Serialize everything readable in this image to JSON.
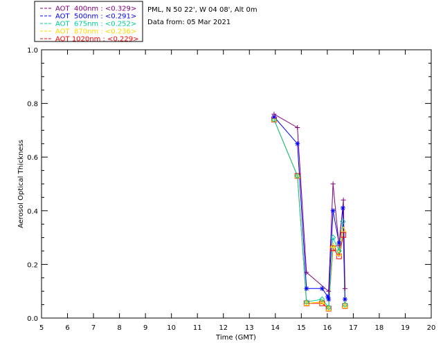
{
  "chart_data": {
    "type": "line",
    "title": "",
    "info_lines": [
      "PML, N 50 22', W 04 08', Alt 0m",
      "Data from: 05 Mar 2021"
    ],
    "xlabel": "Time (GMT)",
    "ylabel": "Aerosol Optical Thickness",
    "xlim": [
      5,
      20
    ],
    "ylim": [
      0,
      1
    ],
    "x_ticks": [
      "5",
      "6",
      "7",
      "8",
      "9",
      "10",
      "11",
      "12",
      "13",
      "14",
      "15",
      "16",
      "17",
      "18",
      "19",
      "20"
    ],
    "y_ticks": [
      "0.0",
      "0.2",
      "0.4",
      "0.6",
      "0.8",
      "1.0"
    ],
    "grid": false,
    "legend_position": "top-left",
    "series": [
      {
        "name": "AOT  400nm : <0.329>",
        "color": "#800080",
        "marker": "plus",
        "x": [
          13.95,
          14.85,
          15.2,
          16.05,
          16.22,
          16.45,
          16.62,
          16.68
        ],
        "y": [
          0.76,
          0.71,
          0.17,
          0.1,
          0.5,
          0.27,
          0.44,
          0.11
        ]
      },
      {
        "name": "AOT  500nm : <0.291>",
        "color": "#0000ff",
        "marker": "asterisk",
        "x": [
          13.95,
          14.85,
          15.2,
          15.8,
          16.02,
          16.05,
          16.22,
          16.45,
          16.6,
          16.68
        ],
        "y": [
          0.75,
          0.65,
          0.11,
          0.11,
          0.08,
          0.07,
          0.4,
          0.28,
          0.41,
          0.07
        ]
      },
      {
        "name": "AOT  675nm : <0.252>",
        "color": "#00cc99",
        "marker": "diamond",
        "x": [
          13.95,
          14.85,
          15.2,
          15.8,
          16.05,
          16.22,
          16.45,
          16.6,
          16.68
        ],
        "y": [
          0.74,
          0.53,
          0.06,
          0.07,
          0.04,
          0.3,
          0.25,
          0.36,
          0.05
        ]
      },
      {
        "name": "AOT  870nm : <0.236>",
        "color": "#ffd700",
        "marker": "triangle",
        "x": [
          13.95,
          14.85,
          15.2,
          15.8,
          16.05,
          16.22,
          16.45,
          16.62,
          16.68
        ],
        "y": [
          0.74,
          0.53,
          0.055,
          0.06,
          0.035,
          0.27,
          0.24,
          0.33,
          0.045
        ]
      },
      {
        "name": "AOT 1020nm : <0.229>",
        "color": "#ff0000",
        "marker": "square",
        "x": [
          13.95,
          14.85,
          15.2,
          15.8,
          16.05,
          16.22,
          16.45,
          16.62,
          16.68
        ],
        "y": [
          0.74,
          0.53,
          0.055,
          0.055,
          0.035,
          0.26,
          0.23,
          0.31,
          0.045
        ]
      }
    ]
  }
}
